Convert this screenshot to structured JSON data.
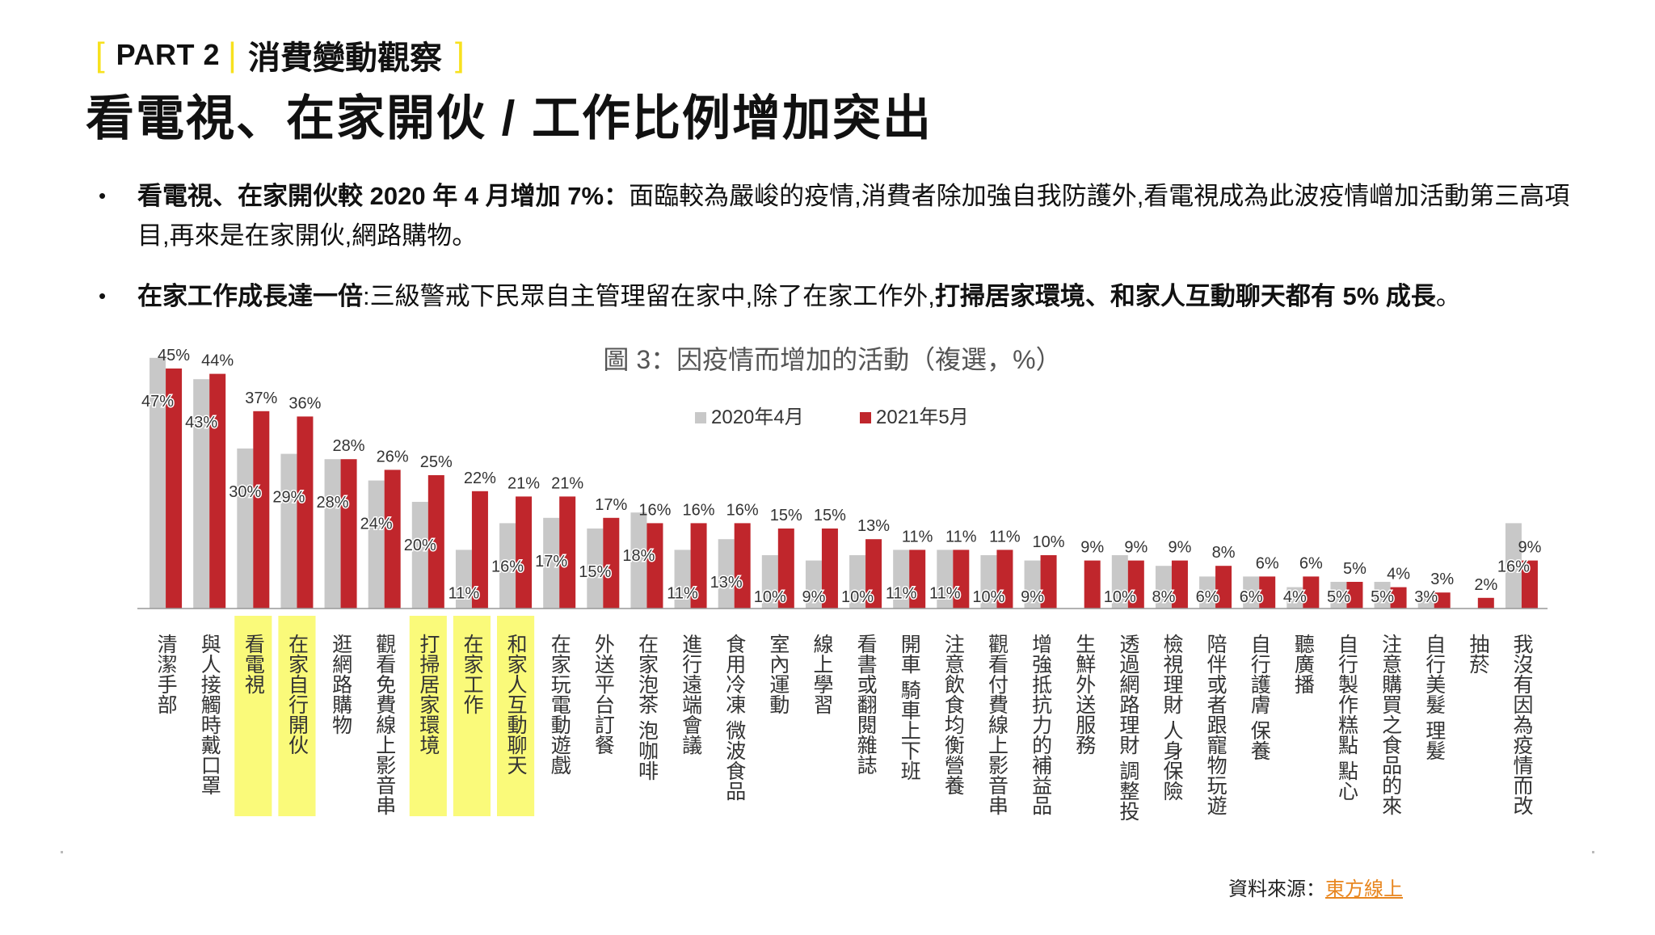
{
  "header": {
    "part_label": "PART 2",
    "part_subtitle": "消費變動觀察",
    "title": "看電視、在家開伙 / 工作比例增加突出"
  },
  "bullets": [
    {
      "bold": "看電視、在家開伙較 2020 年 4 月增加 7%：",
      "text": "面臨較為嚴峻的疫情,消費者除加強自我防護外,看電視成為此波疫情嶒加活動第三高項目,再來是在家開伙,網路購物。"
    },
    {
      "bold": "在家工作成長達一倍",
      "text": ":三級警戒下民眾自主管理留在家中,除了在家工作外,",
      "bold2": "打掃居家環境、和家人互動聊天都有 5% 成長",
      "tail": "。"
    }
  ],
  "chart_data": {
    "type": "bar",
    "title": "圖 3：因疫情而增加的活動（複選，%）",
    "legend_position": "top-center",
    "ylim": [
      0,
      50
    ],
    "categories": [
      "清潔手部",
      "與人接觸時戴口罩",
      "看電視",
      "在家自行開伙",
      "逛網路購物",
      "觀看免費線上影音串",
      "打掃居家環境",
      "在家工作",
      "和家人互動聊天",
      "在家玩電動遊戲",
      "外送平台訂餐",
      "在家泡茶 泡咖啡",
      "進行遠端會議",
      "食用冷凍 微波食品",
      "室內運動",
      "線上學習",
      "看書或翻閱雜誌",
      "開車 騎車上下班",
      "注意飲食均衡營養",
      "觀看付費線上影音串",
      "增強抵抗力的補益品",
      "生鮮外送服務",
      "透過網路理財 調整投",
      "檢視理財 人身保險",
      "陪伴或者跟寵物玩遊",
      "自行護膚 保養",
      "聽廣播",
      "自行製作糕點 點心",
      "注意購買之食品的來",
      "自行美髮 理髮",
      "抽菸",
      "我沒有因為疫情而改"
    ],
    "highlighted": [
      "看電視",
      "在家自行開伙",
      "打掃居家環境",
      "在家工作",
      "和家人互動聊天"
    ],
    "series": [
      {
        "name": "2020年4月",
        "color": "#c8c8c8",
        "values": [
          47,
          43,
          30,
          29,
          28,
          24,
          20,
          11,
          16,
          17,
          15,
          18,
          11,
          13,
          10,
          9,
          10,
          11,
          11,
          10,
          9,
          0,
          10,
          8,
          6,
          6,
          4,
          5,
          5,
          3,
          null,
          16
        ],
        "labels": [
          "47%",
          "43%",
          "30%",
          "29%",
          "28%",
          "24%",
          "20%",
          "11%",
          "16%",
          "17%",
          "15%",
          "18%",
          "11%",
          "13%",
          "10%",
          "9%",
          "10%",
          "11%",
          "11%",
          "10%",
          "9%",
          "",
          "10%",
          "8%",
          "6%",
          "6%",
          "4%",
          "5%",
          "5%",
          "3%",
          "",
          "16%"
        ]
      },
      {
        "name": "2021年5月",
        "color": "#c0262c",
        "values": [
          45,
          44,
          37,
          36,
          28,
          26,
          25,
          22,
          21,
          21,
          17,
          16,
          16,
          16,
          15,
          15,
          13,
          11,
          11,
          11,
          10,
          9,
          9,
          9,
          8,
          6,
          6,
          5,
          4,
          3,
          2,
          9
        ],
        "labels": [
          "45%",
          "44%",
          "37%",
          "36%",
          "28%",
          "26%",
          "25%",
          "22%",
          "21%",
          "21%",
          "17%",
          "16%",
          "16%",
          "16%",
          "15%",
          "15%",
          "13%",
          "11%",
          "11%",
          "11%",
          "10%",
          "9%",
          "9%",
          "9%",
          "8%",
          "6%",
          "6%",
          "5%",
          "4%",
          "3%",
          "2%",
          "9%"
        ]
      }
    ]
  },
  "footer": {
    "source_label": "資料來源：",
    "source_link": "東方線上"
  }
}
